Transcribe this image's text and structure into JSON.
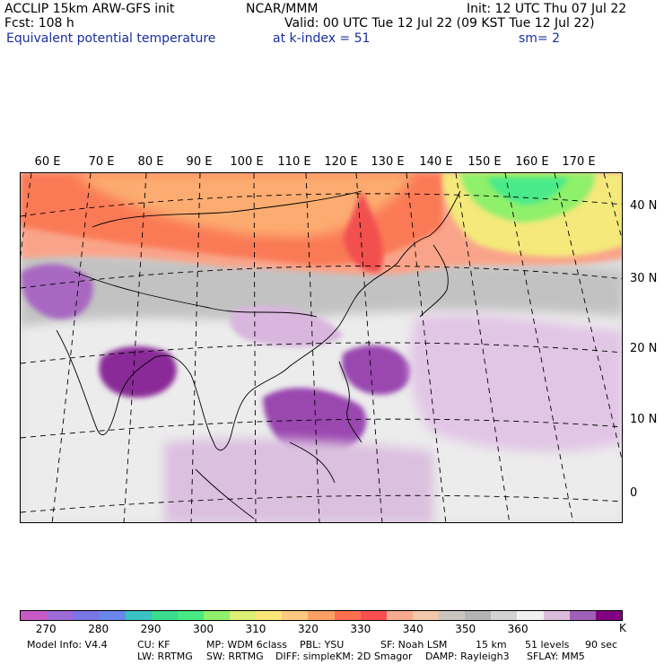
{
  "header": {
    "model": "ACCLIP 15km ARW-GFS init",
    "org": "NCAR/MMM",
    "init": "Init: 12 UTC Thu 07 Jul 22",
    "forecast": "Fcst:  108 h",
    "valid": "Valid: 00 UTC Tue 12 Jul 22 (09 KST Tue 12 Jul 22)",
    "field": "Equivalent potential temperature",
    "level": "at k-index =  51",
    "smoothing": "sm= 2"
  },
  "map": {
    "lon_labels": [
      "60 E",
      "70 E",
      "80 E",
      "90 E",
      "100 E",
      "110 E",
      "120 E",
      "130 E",
      "140 E",
      "150 E",
      "160 E",
      "170 E"
    ],
    "lat_labels": [
      "40 N",
      "30 N",
      "20 N",
      "10 N",
      "0"
    ],
    "land_outline_color": "#000000",
    "grid_line_style": "dashed"
  },
  "colorbar": {
    "colors": [
      "#c85ac8",
      "#9e6ad6",
      "#7b76e6",
      "#6a86ea",
      "#3ac3c3",
      "#3adc8e",
      "#49ea84",
      "#8ff06a",
      "#dcf075",
      "#fae678",
      "#fcc882",
      "#fca064",
      "#fc7050",
      "#f85050",
      "#f8aa90",
      "#f2c8aa",
      "#c8c4c0",
      "#b4b4b4",
      "#d2d2d2",
      "#f0f0f0",
      "#dcbcdc",
      "#a060b8",
      "#820082"
    ],
    "tick_labels": [
      "270",
      "280",
      "290",
      "300",
      "310",
      "320",
      "330",
      "340",
      "350",
      "360"
    ],
    "unit": "K"
  },
  "footer": {
    "line1": [
      "Model Info: V4.4",
      "CU: KF",
      "MP: WDM 6class",
      "PBL: YSU",
      "SF: Noah LSM",
      "15 km",
      "51 levels",
      "90 sec"
    ],
    "line2": [
      "LW: RRTMG",
      "SW: RRTMG",
      "DIFF: simple",
      "KM: 2D Smagor",
      "DAMP: Rayleigh3",
      "SFLAY: MM5"
    ]
  }
}
